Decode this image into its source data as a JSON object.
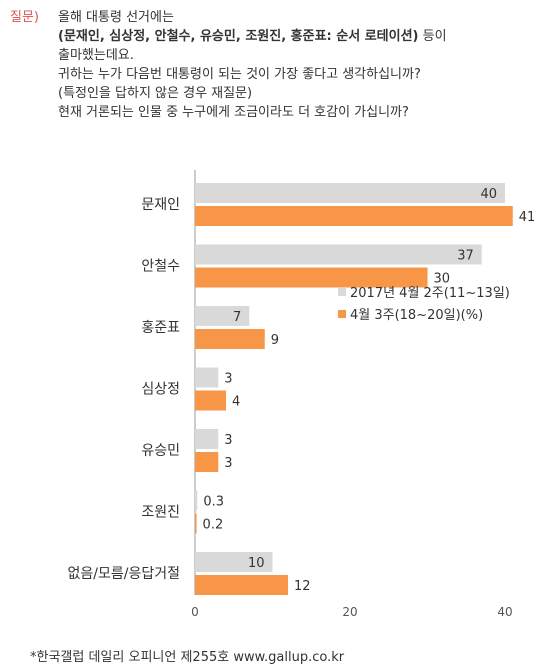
{
  "question": {
    "label": "질문)",
    "lines": [
      {
        "text": "올해 대통령 선거에는",
        "bold": false
      },
      {
        "text": "(문재인, 심상정, 안철수, 유승민, 조원진, 홍준표: 순서 로테이션)",
        "bold": true,
        "suffix": " 등이"
      },
      {
        "text": "출마했는데요.",
        "bold": false
      },
      {
        "text": "귀하는 누가 다음번 대통령이 되는 것이 가장 좋다고 생각하십니까?",
        "bold": false
      },
      {
        "text": "(특정인을 답하지 않은 경우 재질문)",
        "bold": false
      },
      {
        "text": "현재 거론되는 인물 중 누구에게 조금이라도 더 호감이 가십니까?",
        "bold": false
      }
    ]
  },
  "chart_data": {
    "type": "bar",
    "orientation": "horizontal",
    "categories": [
      "문재인",
      "안철수",
      "홍준표",
      "심상정",
      "유승민",
      "조원진",
      "없음/모름/응답거절"
    ],
    "series": [
      {
        "name": "2017년 4월 2주(11~13일)",
        "color": "#d9d9d9",
        "values": [
          40,
          37,
          7,
          3,
          3,
          0.3,
          10
        ]
      },
      {
        "name": "4월 3주(18~20일)(%)",
        "color": "#f79646",
        "values": [
          41,
          30,
          9,
          4,
          3,
          0.2,
          12
        ]
      }
    ],
    "xticks": [
      0,
      20,
      40
    ],
    "xlim": [
      0,
      42
    ],
    "legend_position": "right-middle"
  },
  "source": "*한국갤럽 데일리 오피니언 제255호 www.gallup.co.kr"
}
